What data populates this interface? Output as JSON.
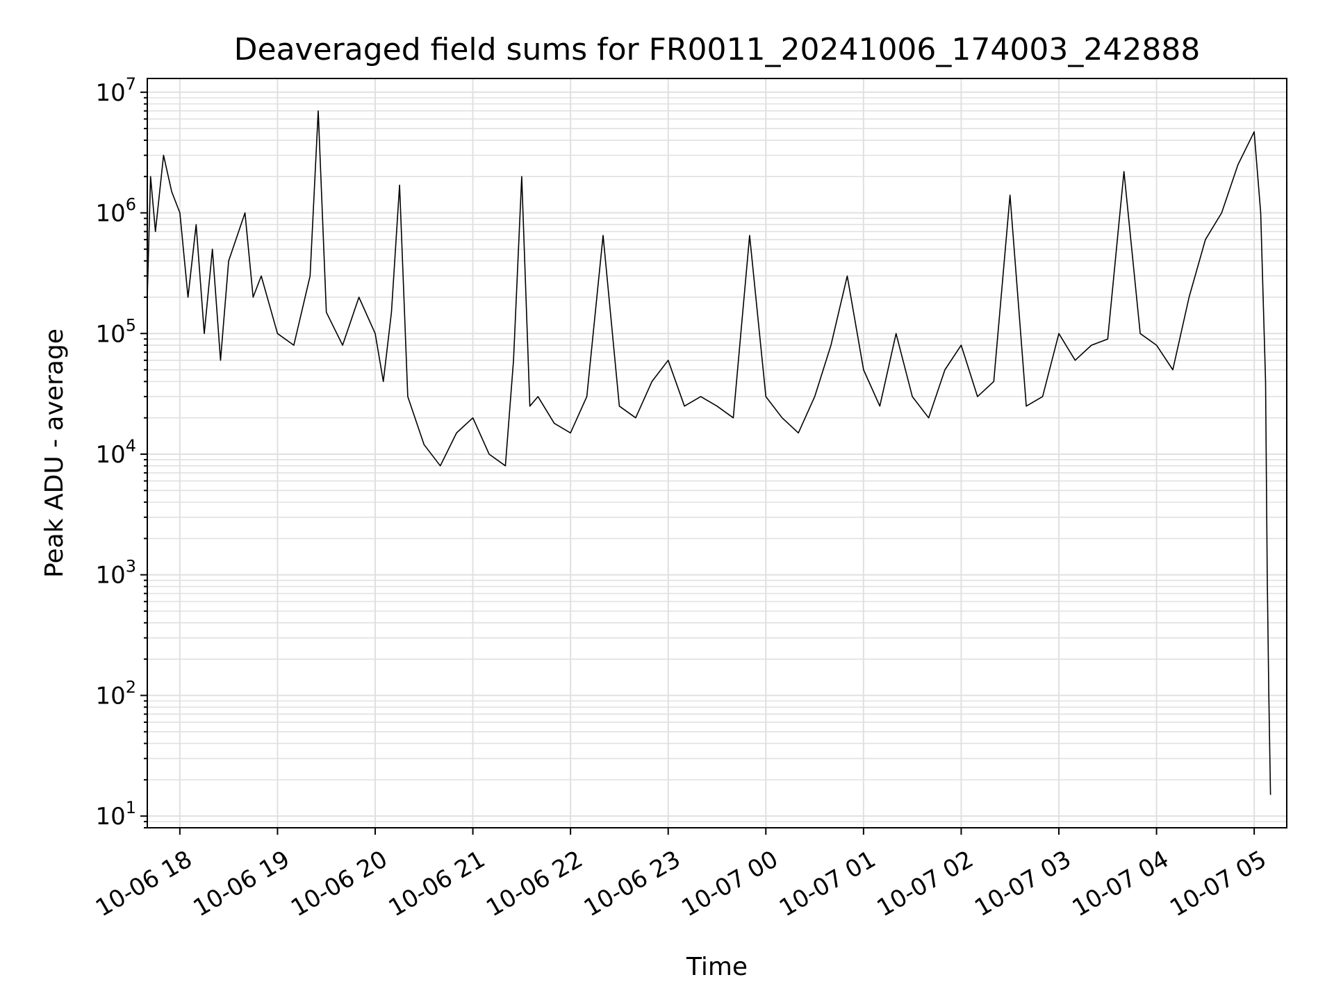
{
  "chart_data": {
    "type": "line",
    "title": "Deaveraged field sums for FR0011_20241006_174003_242888",
    "xlabel": "Time",
    "ylabel": "Peak ADU - average",
    "yscale": "log",
    "xlim": [
      "2024-10-06 17:40",
      "2024-10-07 05:20"
    ],
    "ylim": [
      8,
      13000000
    ],
    "grid": true,
    "x_ticks": [
      "10-06 18",
      "10-06 19",
      "10-06 20",
      "10-06 21",
      "10-06 22",
      "10-06 23",
      "10-07 00",
      "10-07 01",
      "10-07 02",
      "10-07 03",
      "10-07 04",
      "10-07 05"
    ],
    "y_ticks": [
      {
        "base": "10",
        "exp": "1"
      },
      {
        "base": "10",
        "exp": "2"
      },
      {
        "base": "10",
        "exp": "3"
      },
      {
        "base": "10",
        "exp": "4"
      },
      {
        "base": "10",
        "exp": "5"
      },
      {
        "base": "10",
        "exp": "6"
      },
      {
        "base": "10",
        "exp": "7"
      }
    ],
    "line_color": "#000000",
    "grid_color": "#e0e0e0",
    "series": [
      {
        "x": [
          "2024-10-06 17:40",
          "2024-10-06 17:42",
          "2024-10-06 17:45",
          "2024-10-06 17:50",
          "2024-10-06 17:55",
          "2024-10-06 18:00",
          "2024-10-06 18:05",
          "2024-10-06 18:10",
          "2024-10-06 18:15",
          "2024-10-06 18:20",
          "2024-10-06 18:25",
          "2024-10-06 18:30",
          "2024-10-06 18:40",
          "2024-10-06 18:45",
          "2024-10-06 18:50",
          "2024-10-06 19:00",
          "2024-10-06 19:10",
          "2024-10-06 19:20",
          "2024-10-06 19:25",
          "2024-10-06 19:30",
          "2024-10-06 19:40",
          "2024-10-06 19:50",
          "2024-10-06 20:00",
          "2024-10-06 20:05",
          "2024-10-06 20:10",
          "2024-10-06 20:15",
          "2024-10-06 20:20",
          "2024-10-06 20:30",
          "2024-10-06 20:40",
          "2024-10-06 20:50",
          "2024-10-06 21:00",
          "2024-10-06 21:10",
          "2024-10-06 21:20",
          "2024-10-06 21:25",
          "2024-10-06 21:30",
          "2024-10-06 21:35",
          "2024-10-06 21:40",
          "2024-10-06 21:50",
          "2024-10-06 22:00",
          "2024-10-06 22:10",
          "2024-10-06 22:20",
          "2024-10-06 22:30",
          "2024-10-06 22:40",
          "2024-10-06 22:50",
          "2024-10-06 23:00",
          "2024-10-06 23:10",
          "2024-10-06 23:20",
          "2024-10-06 23:30",
          "2024-10-06 23:40",
          "2024-10-06 23:50",
          "2024-10-07 00:00",
          "2024-10-07 00:10",
          "2024-10-07 00:20",
          "2024-10-07 00:30",
          "2024-10-07 00:40",
          "2024-10-07 00:50",
          "2024-10-07 01:00",
          "2024-10-07 01:10",
          "2024-10-07 01:20",
          "2024-10-07 01:30",
          "2024-10-07 01:40",
          "2024-10-07 01:50",
          "2024-10-07 02:00",
          "2024-10-07 02:10",
          "2024-10-07 02:20",
          "2024-10-07 02:30",
          "2024-10-07 02:40",
          "2024-10-07 02:50",
          "2024-10-07 03:00",
          "2024-10-07 03:10",
          "2024-10-07 03:20",
          "2024-10-07 03:30",
          "2024-10-07 03:40",
          "2024-10-07 03:50",
          "2024-10-07 04:00",
          "2024-10-07 04:10",
          "2024-10-07 04:20",
          "2024-10-07 04:30",
          "2024-10-07 04:40",
          "2024-10-07 04:50",
          "2024-10-07 05:00",
          "2024-10-07 05:04",
          "2024-10-07 05:07",
          "2024-10-07 05:08",
          "2024-10-07 05:09",
          "2024-10-07 05:10"
        ],
        "y": [
          200000,
          2000000,
          700000,
          3000000,
          1500000,
          1000000,
          200000,
          800000,
          100000,
          500000,
          60000,
          400000,
          1000000,
          200000,
          300000,
          100000,
          80000,
          300000,
          7000000,
          150000,
          80000,
          200000,
          100000,
          40000,
          150000,
          1700000,
          30000,
          12000,
          8000,
          15000,
          20000,
          10000,
          8000,
          60000,
          2000000,
          25000,
          30000,
          18000,
          15000,
          30000,
          650000,
          25000,
          20000,
          40000,
          60000,
          25000,
          30000,
          25000,
          20000,
          650000,
          30000,
          20000,
          15000,
          30000,
          80000,
          300000,
          50000,
          25000,
          100000,
          30000,
          20000,
          50000,
          80000,
          30000,
          40000,
          1400000,
          25000,
          30000,
          100000,
          60000,
          80000,
          90000,
          2200000,
          100000,
          80000,
          50000,
          200000,
          600000,
          1000000,
          2500000,
          4700000,
          1000000,
          40000,
          1000,
          100,
          15
        ]
      }
    ]
  }
}
